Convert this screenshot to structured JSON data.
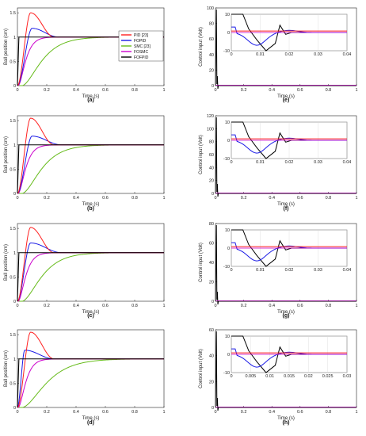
{
  "figure": {
    "colors": {
      "PID": "#ff2020",
      "FOPID": "#1a1ae6",
      "SMC": "#66bb1a",
      "FOSMC": "#cc00cc",
      "FOFPID": "#000000",
      "axis": "#222222",
      "grid": "#d8d8d8"
    },
    "legend": [
      "PID [23]",
      "FOPID",
      "SMC [23]",
      "FOSMC",
      "FOFPID"
    ],
    "legend_keys": [
      "PID",
      "FOPID",
      "SMC",
      "FOSMC",
      "FOFPID"
    ],
    "left_column": {
      "xlabel": "Time (s)",
      "ylabel": "Ball position (cm)",
      "xlim": [
        0,
        1
      ],
      "ylim": [
        0,
        1.6
      ],
      "xticks": [
        "0",
        "0.2",
        "0.4",
        "0.6",
        "0.8",
        "1"
      ],
      "yticks": [
        "0",
        "0.5",
        "1",
        "1.5"
      ]
    },
    "right_column": {
      "xlabel": "Time (s)",
      "ylabel": "Control input (Volt)",
      "xlim": [
        0,
        1
      ],
      "xticks": [
        "0",
        "0.2",
        "0.4",
        "0.6",
        "0.8",
        "1"
      ]
    },
    "panels": [
      {
        "label": "(a)"
      },
      {
        "label": "(e)"
      },
      {
        "label": "(b)"
      },
      {
        "label": "(f)"
      },
      {
        "label": "(c)"
      },
      {
        "label": "(g)"
      },
      {
        "label": "(d)"
      },
      {
        "label": "(h)"
      }
    ]
  },
  "chart_data": [
    {
      "type": "line",
      "panel": "a",
      "xlabel": "Time (s)",
      "ylabel": "Ball position (cm)",
      "xlim": [
        0,
        1
      ],
      "ylim": [
        0,
        1.6
      ],
      "legend": "inside, middle-right",
      "responses": {
        "PID": {
          "peak_time": 0.09,
          "peak": 1.5,
          "settle": 0.25
        },
        "FOPID": {
          "peak_time": 0.1,
          "peak": 1.18,
          "settle": 0.28
        },
        "SMC": {
          "time_constant": 0.08
        },
        "FOSMC": {
          "time_constant": 0.03
        },
        "FOFPID": {
          "rise_time": 0.01
        }
      },
      "setpoint": 1
    },
    {
      "type": "line",
      "panel": "e",
      "xlabel": "Time (s)",
      "ylabel": "Control input (Volt)",
      "xlim": [
        0,
        1
      ],
      "ylim": [
        0,
        100
      ],
      "yticks": [
        "0",
        "20",
        "40",
        "60",
        "80",
        "100"
      ],
      "inset": {
        "xlim": [
          0,
          0.04
        ],
        "ylim": [
          -10,
          10
        ],
        "xticks": [
          "0",
          "0.01",
          "0.02",
          "0.03",
          "0.04"
        ],
        "yticks": [
          "-10",
          "0",
          "10"
        ]
      }
    },
    {
      "type": "line",
      "panel": "b",
      "xlabel": "Time (s)",
      "ylabel": "Ball position (cm)",
      "xlim": [
        0,
        1
      ],
      "ylim": [
        0,
        1.6
      ],
      "responses": {
        "PID": {
          "peak_time": 0.09,
          "peak": 1.55,
          "settle": 0.25
        },
        "FOPID": {
          "peak_time": 0.1,
          "peak": 1.18,
          "settle": 0.3
        },
        "SMC": {
          "time_constant": 0.08
        },
        "FOSMC": {
          "time_constant": 0.03
        },
        "FOFPID": {
          "rise_time": 0.01
        }
      },
      "setpoint": 1
    },
    {
      "type": "line",
      "panel": "f",
      "xlabel": "Time (s)",
      "ylabel": "Control input (Volt)",
      "xlim": [
        0,
        1
      ],
      "ylim": [
        0,
        120
      ],
      "yticks": [
        "0",
        "20",
        "40",
        "60",
        "80",
        "100",
        "120"
      ],
      "inset": {
        "xlim": [
          0,
          0.04
        ],
        "ylim": [
          -10,
          10
        ],
        "xticks": [
          "0",
          "0.01",
          "0.02",
          "0.03",
          "0.04"
        ],
        "yticks": [
          "-10",
          "0",
          "10"
        ]
      }
    },
    {
      "type": "line",
      "panel": "c",
      "xlabel": "Time (s)",
      "ylabel": "Ball position (cm)",
      "xlim": [
        0,
        1
      ],
      "ylim": [
        0,
        1.6
      ],
      "responses": {
        "PID": {
          "peak_time": 0.09,
          "peak": 1.52,
          "settle": 0.25
        },
        "FOPID": {
          "peak_time": 0.09,
          "peak": 1.2,
          "settle": 0.3
        },
        "SMC": {
          "time_constant": 0.08
        },
        "FOSMC": {
          "time_constant": 0.03
        },
        "FOFPID": {
          "rise_time": 0.01
        }
      },
      "setpoint": 1
    },
    {
      "type": "line",
      "panel": "g",
      "xlabel": "Time (s)",
      "ylabel": "Control input (Volt)",
      "xlim": [
        0,
        1
      ],
      "ylim": [
        0,
        80
      ],
      "yticks": [
        "0",
        "20",
        "40",
        "60",
        "80"
      ],
      "inset": {
        "xlim": [
          0,
          0.04
        ],
        "ylim": [
          -10,
          10
        ],
        "xticks": [
          "0",
          "0.01",
          "0.02",
          "0.03",
          "0.04"
        ],
        "yticks": [
          "-10",
          "0",
          "10"
        ]
      }
    },
    {
      "type": "line",
      "panel": "d",
      "xlabel": "Time (s)",
      "ylabel": "Ball position (cm)",
      "xlim": [
        0,
        1
      ],
      "ylim": [
        0,
        1.6
      ],
      "responses": {
        "PID": {
          "peak_time": 0.09,
          "peak": 1.55,
          "settle": 0.25
        },
        "FOPID": {
          "peak_time": 0.05,
          "peak": 1.18,
          "settle": 0.25
        },
        "SMC": {
          "time_constant": 0.1
        },
        "FOSMC": {
          "time_constant": 0.03
        },
        "FOFPID": {
          "rise_time": 0.01
        }
      },
      "setpoint": 1
    },
    {
      "type": "line",
      "panel": "h",
      "xlabel": "Time (s)",
      "ylabel": "Control input (Volt)",
      "xlim": [
        0,
        1
      ],
      "ylim": [
        0,
        60
      ],
      "yticks": [
        "0",
        "20",
        "40",
        "60"
      ],
      "inset": {
        "xlim": [
          0,
          0.03
        ],
        "ylim": [
          -10,
          10
        ],
        "xticks": [
          "0",
          "0.005",
          "0.01",
          "0.015",
          "0.02",
          "0.025",
          "0.03"
        ],
        "yticks": [
          "-10",
          "0",
          "10"
        ]
      }
    }
  ]
}
